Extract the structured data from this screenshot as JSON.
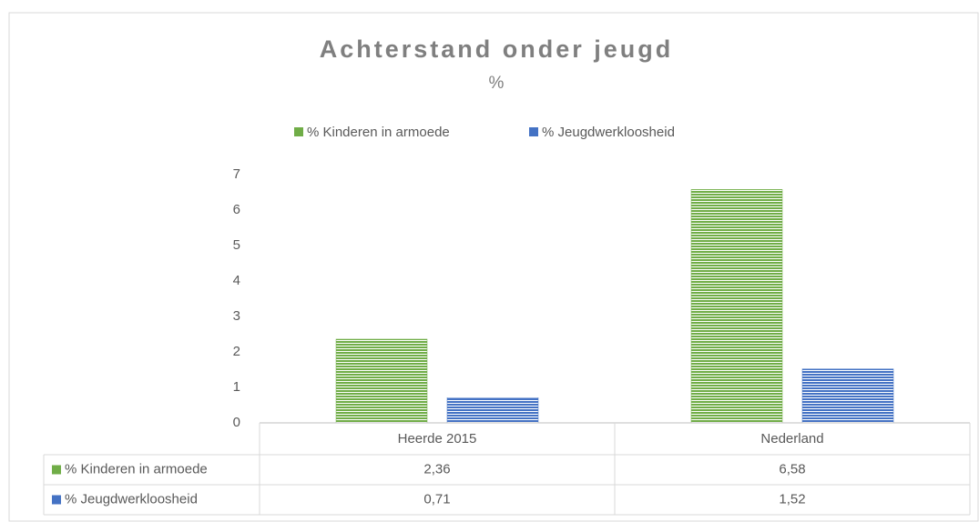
{
  "chart_data": {
    "type": "bar",
    "title": "Achterstand onder jeugd",
    "subtitle": "%",
    "categories": [
      "Heerde 2015",
      "Nederland"
    ],
    "series": [
      {
        "name": "% Kinderen in armoede",
        "color": "#70ad47",
        "values": [
          2.36,
          6.58
        ],
        "value_labels": [
          "2,36",
          "6,58"
        ]
      },
      {
        "name": "% Jeugdwerkloosheid",
        "color": "#4472c4",
        "values": [
          0.71,
          1.52
        ],
        "value_labels": [
          "0,71",
          "1,52"
        ]
      }
    ],
    "ylim": [
      0,
      7
    ],
    "yticks": [
      0,
      1,
      2,
      3,
      4,
      5,
      6,
      7
    ],
    "grid": false,
    "legend": "top",
    "data_table": true
  }
}
